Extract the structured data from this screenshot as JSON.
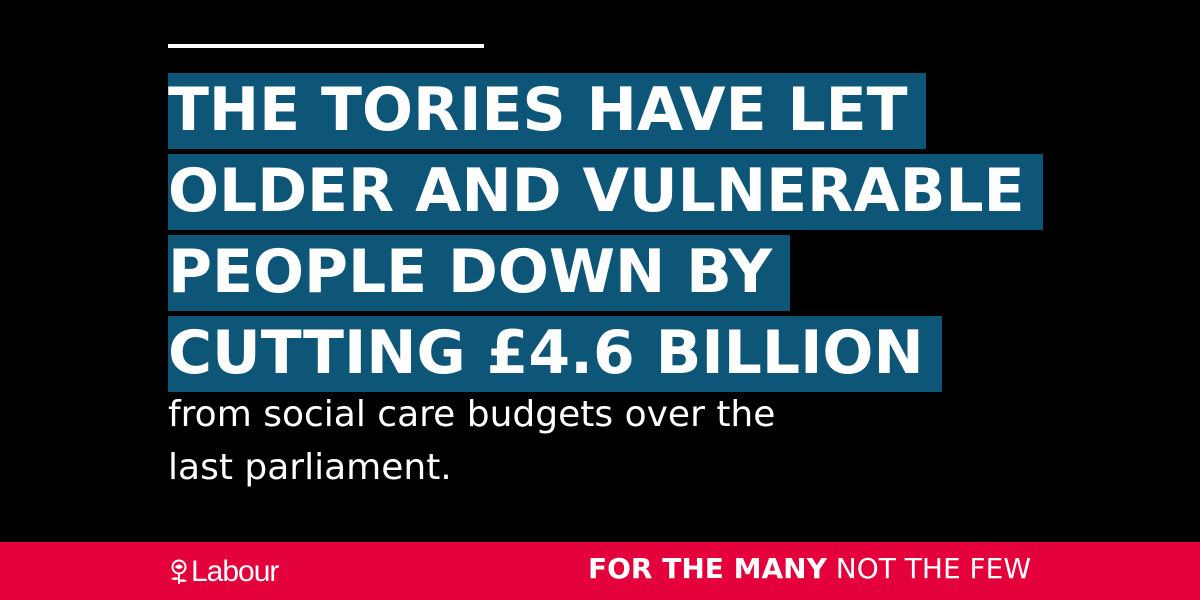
{
  "headline": {
    "lines": [
      "THE TORIES HAVE LET",
      "OLDER AND VULNERABLE",
      "PEOPLE DOWN BY",
      "CUTTING £4.6 BILLION"
    ]
  },
  "subheadline": {
    "lines": [
      "from social care budgets over the",
      "last parliament."
    ]
  },
  "footer": {
    "logo_text": "Labour",
    "logo_icon": "rose-icon",
    "slogan_bold": "FOR THE MANY",
    "slogan_light": "NOT THE FEW"
  },
  "colors": {
    "background": "#000000",
    "headline_highlight": "#0d5678",
    "footer_bar": "#e4003b",
    "text": "#ffffff"
  }
}
